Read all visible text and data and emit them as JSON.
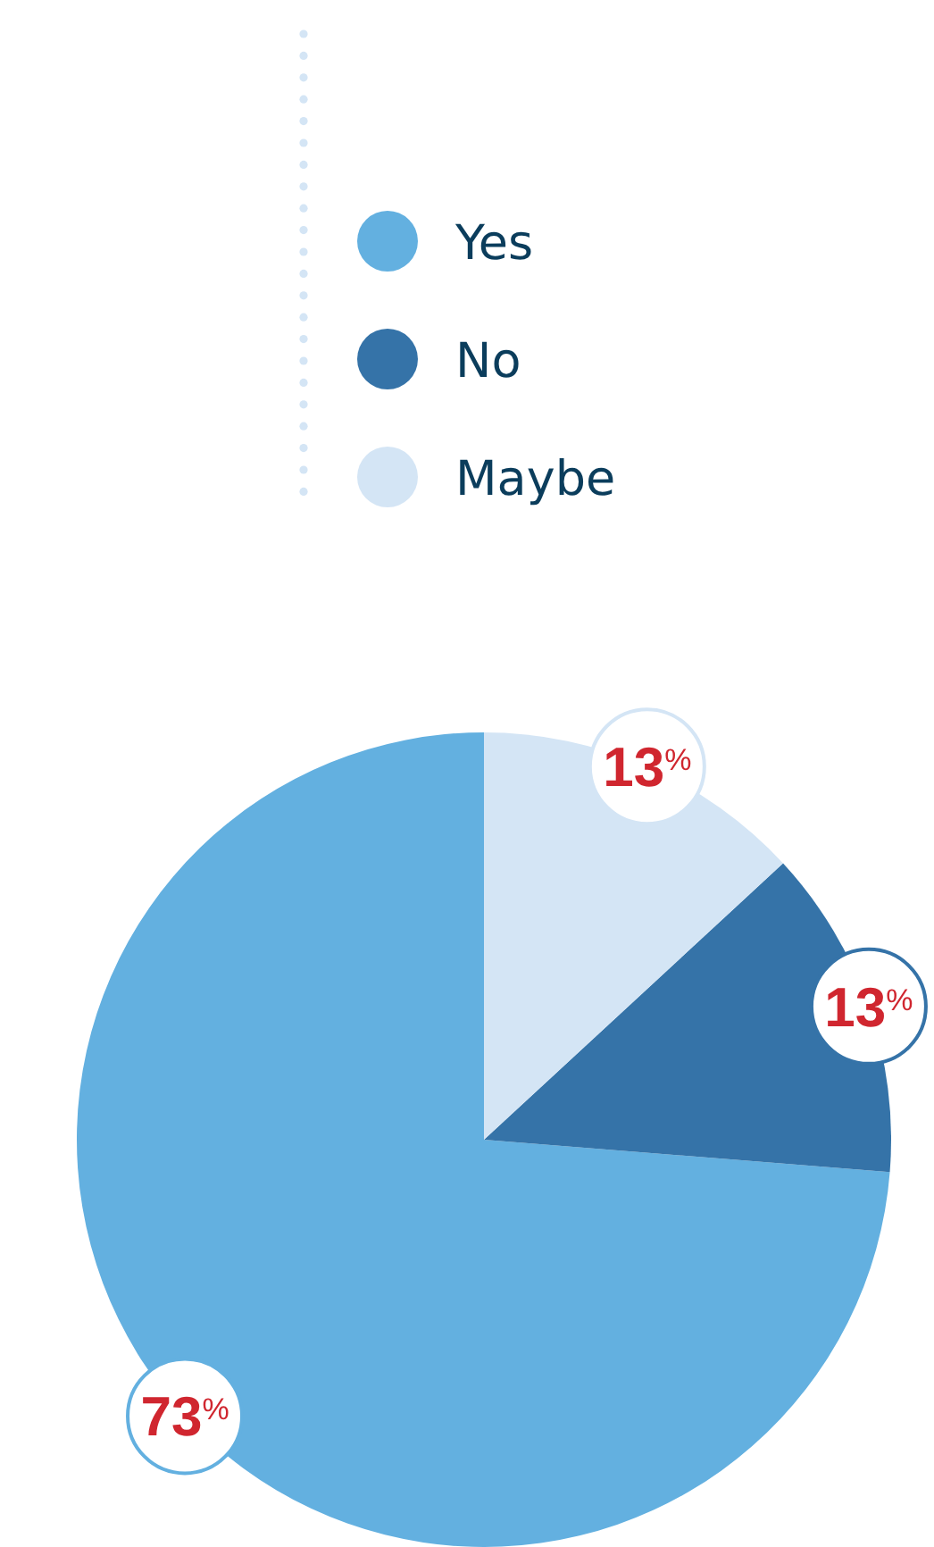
{
  "chart_data": {
    "type": "pie",
    "categories": [
      "Yes",
      "No",
      "Maybe"
    ],
    "values": [
      73,
      13,
      13
    ],
    "colors": [
      "#63b0e0",
      "#3573a8",
      "#d4e5f5"
    ],
    "value_labels": [
      "73$^{%}$",
      "13$^{%}$",
      "13$^{%}$"
    ],
    "legend": "top"
  }
}
